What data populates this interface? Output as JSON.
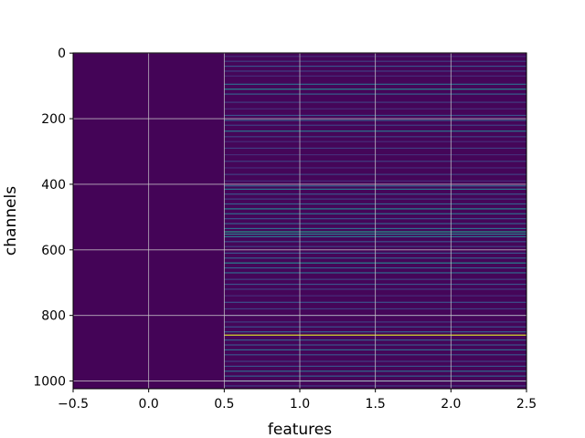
{
  "chart_data": {
    "type": "heatmap",
    "title": "",
    "xlabel": "features",
    "ylabel": "channels",
    "x_columns": [
      0,
      1,
      2
    ],
    "xlim": [
      -0.5,
      2.5
    ],
    "ylim": [
      1023.5,
      -0.5
    ],
    "n_rows": 1024,
    "x_ticks": [
      -0.5,
      0.0,
      0.5,
      1.0,
      1.5,
      2.0,
      2.5
    ],
    "x_tick_labels": [
      "−0.5",
      "0.0",
      "0.5",
      "1.0",
      "1.5",
      "2.0",
      "2.5"
    ],
    "y_ticks": [
      0,
      200,
      400,
      600,
      800,
      1000
    ],
    "y_tick_labels": [
      "0",
      "200",
      "400",
      "600",
      "800",
      "1000"
    ],
    "grid": true,
    "colormap": "viridis",
    "value_range": [
      0,
      1
    ],
    "background_value": 0.02,
    "column0_value": 0.01,
    "notable_rows": [
      {
        "row": 10,
        "value": 0.15
      },
      {
        "row": 25,
        "value": 0.2
      },
      {
        "row": 40,
        "value": 0.25
      },
      {
        "row": 55,
        "value": 0.2
      },
      {
        "row": 70,
        "value": 0.15
      },
      {
        "row": 95,
        "value": 0.35
      },
      {
        "row": 110,
        "value": 0.45
      },
      {
        "row": 125,
        "value": 0.3
      },
      {
        "row": 150,
        "value": 0.2
      },
      {
        "row": 170,
        "value": 0.15
      },
      {
        "row": 190,
        "value": 0.25
      },
      {
        "row": 205,
        "value": 0.3
      },
      {
        "row": 220,
        "value": 0.2
      },
      {
        "row": 238,
        "value": 0.4
      },
      {
        "row": 255,
        "value": 0.2
      },
      {
        "row": 270,
        "value": 0.15
      },
      {
        "row": 290,
        "value": 0.2
      },
      {
        "row": 310,
        "value": 0.15
      },
      {
        "row": 330,
        "value": 0.2
      },
      {
        "row": 350,
        "value": 0.15
      },
      {
        "row": 370,
        "value": 0.2
      },
      {
        "row": 390,
        "value": 0.15
      },
      {
        "row": 405,
        "value": 0.3
      },
      {
        "row": 415,
        "value": 0.4
      },
      {
        "row": 430,
        "value": 0.25
      },
      {
        "row": 445,
        "value": 0.2
      },
      {
        "row": 460,
        "value": 0.3
      },
      {
        "row": 475,
        "value": 0.45
      },
      {
        "row": 490,
        "value": 0.35
      },
      {
        "row": 505,
        "value": 0.25
      },
      {
        "row": 520,
        "value": 0.3
      },
      {
        "row": 535,
        "value": 0.35
      },
      {
        "row": 545,
        "value": 0.55
      },
      {
        "row": 552,
        "value": 0.45
      },
      {
        "row": 560,
        "value": 0.4
      },
      {
        "row": 575,
        "value": 0.25
      },
      {
        "row": 590,
        "value": 0.2
      },
      {
        "row": 610,
        "value": 0.25
      },
      {
        "row": 625,
        "value": 0.3
      },
      {
        "row": 640,
        "value": 0.45
      },
      {
        "row": 655,
        "value": 0.3
      },
      {
        "row": 670,
        "value": 0.35
      },
      {
        "row": 690,
        "value": 0.2
      },
      {
        "row": 705,
        "value": 0.25
      },
      {
        "row": 720,
        "value": 0.2
      },
      {
        "row": 740,
        "value": 0.15
      },
      {
        "row": 760,
        "value": 0.25
      },
      {
        "row": 780,
        "value": 0.2
      },
      {
        "row": 800,
        "value": 0.15
      },
      {
        "row": 820,
        "value": 0.2
      },
      {
        "row": 835,
        "value": 0.25
      },
      {
        "row": 850,
        "value": 0.3
      },
      {
        "row": 860,
        "value": 0.95
      },
      {
        "row": 875,
        "value": 0.3
      },
      {
        "row": 890,
        "value": 0.25
      },
      {
        "row": 905,
        "value": 0.35
      },
      {
        "row": 920,
        "value": 0.25
      },
      {
        "row": 940,
        "value": 0.2
      },
      {
        "row": 955,
        "value": 0.25
      },
      {
        "row": 970,
        "value": 0.35
      },
      {
        "row": 985,
        "value": 0.3
      },
      {
        "row": 1000,
        "value": 0.3
      },
      {
        "row": 1015,
        "value": 0.2
      }
    ]
  }
}
